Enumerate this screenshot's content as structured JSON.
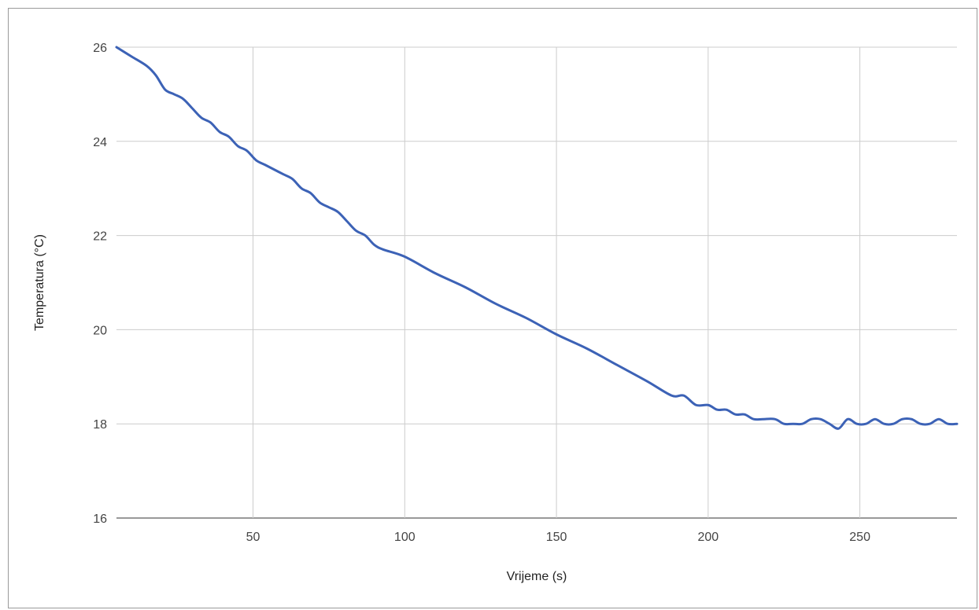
{
  "chart_data": {
    "type": "line",
    "title": "",
    "xlabel": "Vrijeme (s)",
    "ylabel": "Temperatura (°C)",
    "xlim": [
      5,
      282
    ],
    "ylim": [
      16,
      26
    ],
    "x_ticks": [
      50,
      100,
      150,
      200,
      250
    ],
    "y_ticks": [
      16,
      18,
      20,
      22,
      24,
      26
    ],
    "grid": true,
    "legend": "none",
    "line_color": "#3c62b6",
    "series": [
      {
        "x": [
          5,
          10,
          15,
          18,
          21,
          24,
          27,
          30,
          33,
          36,
          39,
          42,
          45,
          48,
          51,
          54,
          57,
          60,
          63,
          66,
          69,
          72,
          75,
          78,
          81,
          84,
          87,
          90,
          93,
          100,
          110,
          120,
          130,
          140,
          150,
          160,
          170,
          180,
          188,
          192,
          196,
          200,
          203,
          206,
          209,
          212,
          215,
          218,
          222,
          225,
          228,
          231,
          234,
          237,
          240,
          243,
          246,
          249,
          252,
          255,
          258,
          261,
          264,
          267,
          270,
          273,
          276,
          279,
          282
        ],
        "y": [
          26.0,
          25.8,
          25.6,
          25.4,
          25.1,
          25.0,
          24.9,
          24.7,
          24.5,
          24.4,
          24.2,
          24.1,
          23.9,
          23.8,
          23.6,
          23.5,
          23.4,
          23.3,
          23.2,
          23.0,
          22.9,
          22.7,
          22.6,
          22.5,
          22.3,
          22.1,
          22.0,
          21.8,
          21.7,
          21.55,
          21.2,
          20.9,
          20.55,
          20.25,
          19.9,
          19.6,
          19.25,
          18.9,
          18.6,
          18.6,
          18.4,
          18.4,
          18.3,
          18.3,
          18.2,
          18.2,
          18.1,
          18.1,
          18.1,
          18.0,
          18.0,
          18.0,
          18.1,
          18.1,
          18.0,
          17.9,
          18.1,
          18.0,
          18.0,
          18.1,
          18.0,
          18.0,
          18.1,
          18.1,
          18.0,
          18.0,
          18.1,
          18.0,
          18.0
        ]
      }
    ]
  }
}
